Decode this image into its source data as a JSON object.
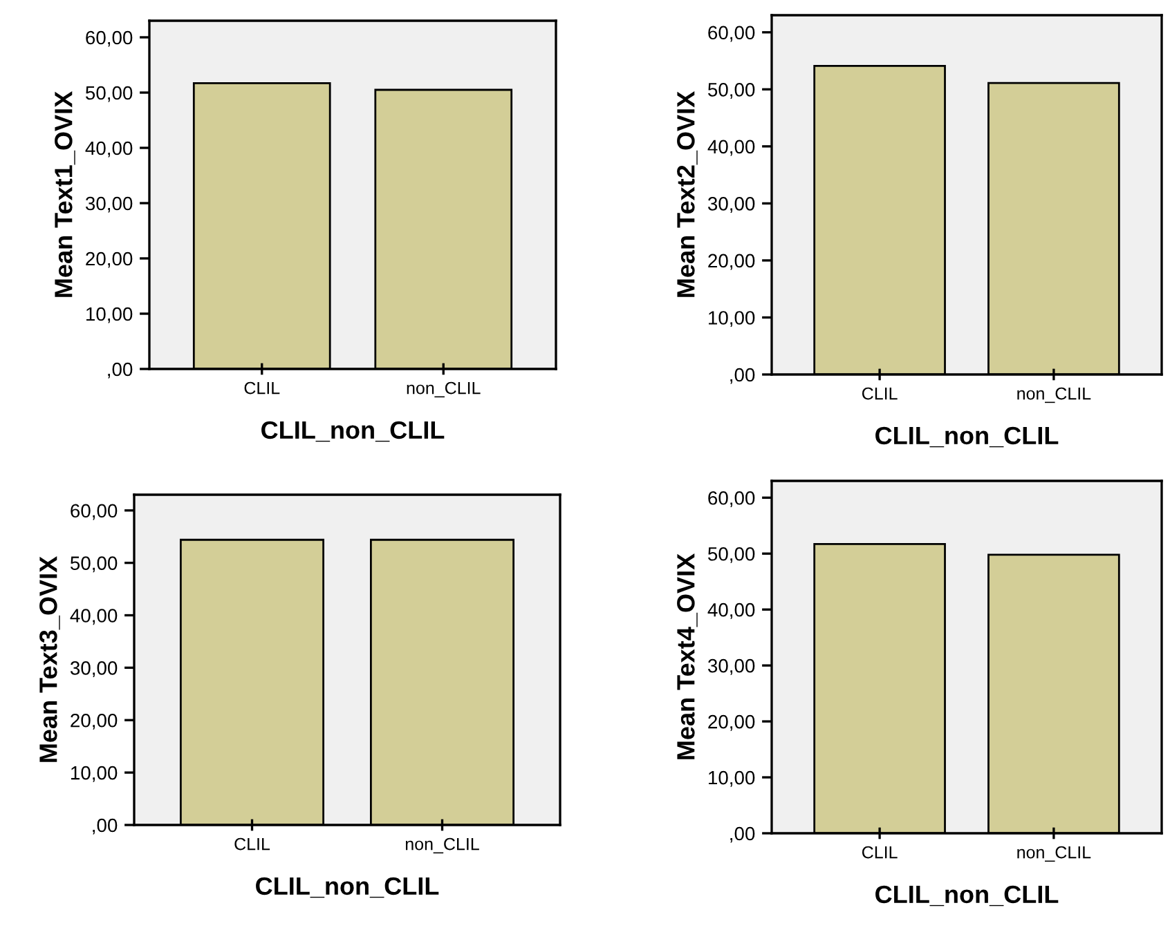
{
  "chart_data": [
    {
      "type": "bar",
      "categories": [
        "CLIL",
        "non_CLIL"
      ],
      "values": [
        51.7,
        50.5
      ],
      "color": "#d3ce97",
      "xlabel": "CLIL_non_CLIL",
      "ylabel": "Mean Text1_OVIX",
      "ylim": [
        0,
        63
      ],
      "yticks": [
        {
          "value": 0,
          "label": ",00"
        },
        {
          "value": 10,
          "label": "10,00"
        },
        {
          "value": 20,
          "label": "20,00"
        },
        {
          "value": 30,
          "label": "30,00"
        },
        {
          "value": 40,
          "label": "40,00"
        },
        {
          "value": 50,
          "label": "50,00"
        },
        {
          "value": 60,
          "label": "60,00"
        }
      ],
      "grid": false,
      "legend": false
    },
    {
      "type": "bar",
      "categories": [
        "CLIL",
        "non_CLIL"
      ],
      "values": [
        54.1,
        51.1
      ],
      "color": "#d3ce97",
      "xlabel": "CLIL_non_CLIL",
      "ylabel": "Mean Text2_OVIX",
      "ylim": [
        0,
        63
      ],
      "yticks": [
        {
          "value": 0,
          "label": ",00"
        },
        {
          "value": 10,
          "label": "10,00"
        },
        {
          "value": 20,
          "label": "20,00"
        },
        {
          "value": 30,
          "label": "30,00"
        },
        {
          "value": 40,
          "label": "40,00"
        },
        {
          "value": 50,
          "label": "50,00"
        },
        {
          "value": 60,
          "label": "60,00"
        }
      ],
      "grid": false,
      "legend": false
    },
    {
      "type": "bar",
      "categories": [
        "CLIL",
        "non_CLIL"
      ],
      "values": [
        54.4,
        54.4
      ],
      "color": "#d3ce97",
      "xlabel": "CLIL_non_CLIL",
      "ylabel": "Mean Text3_OVIX",
      "ylim": [
        0,
        63
      ],
      "yticks": [
        {
          "value": 0,
          "label": ",00"
        },
        {
          "value": 10,
          "label": "10,00"
        },
        {
          "value": 20,
          "label": "20,00"
        },
        {
          "value": 30,
          "label": "30,00"
        },
        {
          "value": 40,
          "label": "40,00"
        },
        {
          "value": 50,
          "label": "50,00"
        },
        {
          "value": 60,
          "label": "60,00"
        }
      ],
      "grid": false,
      "legend": false
    },
    {
      "type": "bar",
      "categories": [
        "CLIL",
        "non_CLIL"
      ],
      "values": [
        51.7,
        49.8
      ],
      "color": "#d3ce97",
      "xlabel": "CLIL_non_CLIL",
      "ylabel": "Mean Text4_OVIX",
      "ylim": [
        0,
        63
      ],
      "yticks": [
        {
          "value": 0,
          "label": ",00"
        },
        {
          "value": 10,
          "label": "10,00"
        },
        {
          "value": 20,
          "label": "20,00"
        },
        {
          "value": 30,
          "label": "30,00"
        },
        {
          "value": 40,
          "label": "40,00"
        },
        {
          "value": 50,
          "label": "50,00"
        },
        {
          "value": 60,
          "label": "60,00"
        }
      ],
      "grid": false,
      "legend": false
    }
  ]
}
